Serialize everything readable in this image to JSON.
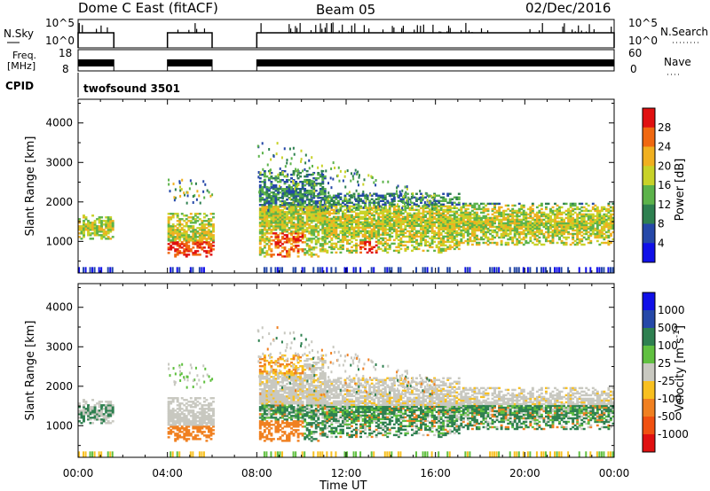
{
  "header": {
    "station": "Dome C East (fitACF)",
    "beam": "Beam 05",
    "date": "02/Dec/2016"
  },
  "top_panels": {
    "nsky_label": "N.Sky",
    "nsky_ticks": [
      "10^5",
      "10^0"
    ],
    "nsearch_label": "N.Search",
    "nsearch_ticks": [
      "10^5",
      "10^0"
    ],
    "freq_label_1": "Freq.",
    "freq_label_2": "[MHz]",
    "freq_ticks": [
      "18",
      "8"
    ],
    "nave_label": "Nave",
    "nave_ticks": [
      "60",
      "0"
    ],
    "cpid_label": "CPID",
    "cpid_name": "twofsound 3501"
  },
  "chart_data": [
    {
      "type": "heatmap",
      "name": "power",
      "ylabel": "Slant Range [km]",
      "yticks": [
        1000,
        2000,
        3000,
        4000
      ],
      "ylim": [
        200,
        4600
      ],
      "xlim": [
        0,
        24
      ],
      "xticks": [
        "00:00",
        "04:00",
        "08:00",
        "12:00",
        "16:00",
        "20:00",
        "00:00"
      ],
      "colorbar": {
        "label": "Power [dB]",
        "ticks": [
          4,
          8,
          12,
          16,
          20,
          24,
          28
        ],
        "range": [
          0,
          30
        ],
        "colors": [
          "#1010e8",
          "#2548a8",
          "#2e8050",
          "#5cb34a",
          "#c8d228",
          "#f0b020",
          "#f06810",
          "#e01010"
        ]
      },
      "data_blocks": [
        {
          "t0": 0.0,
          "t1": 1.6,
          "r0": 1050,
          "r1": 1650
        },
        {
          "t0": 4.0,
          "t1": 6.0,
          "r0": 600,
          "r1": 1700
        },
        {
          "t0": 8.0,
          "t1": 11.0,
          "r0": 600,
          "r1": 2800
        },
        {
          "t0": 11.0,
          "t1": 17.0,
          "r0": 700,
          "r1": 2200
        },
        {
          "t0": 17.0,
          "t1": 24.0,
          "r0": 900,
          "r1": 1900
        }
      ]
    },
    {
      "type": "heatmap",
      "name": "velocity",
      "ylabel": "Slant Range [km]",
      "yticks": [
        1000,
        2000,
        3000,
        4000
      ],
      "ylim": [
        200,
        4600
      ],
      "xlim": [
        0,
        24
      ],
      "xticks": [
        "00:00",
        "04:00",
        "08:00",
        "12:00",
        "16:00",
        "20:00",
        "00:00"
      ],
      "colorbar": {
        "label": "Velocity [m s^-1]",
        "ticks": [
          "-1000",
          "-500",
          "-100",
          "-25",
          "25",
          "100",
          "500",
          "1000"
        ],
        "colors": [
          "#e01010",
          "#f05010",
          "#f08020",
          "#f8c020",
          "#c8c8c0",
          "#60c040",
          "#2e8050",
          "#2548a8",
          "#1010e8"
        ]
      }
    }
  ],
  "xlabel": "Time UT"
}
